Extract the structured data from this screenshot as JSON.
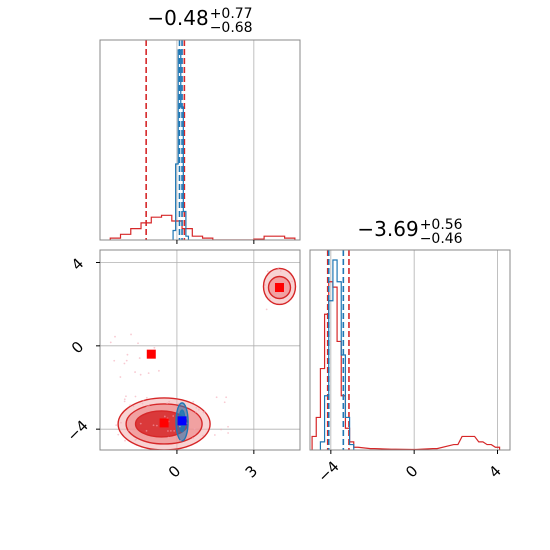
{
  "chart_data": {
    "type": "corner",
    "parameters": [
      {
        "title_value": "−0.48",
        "title_plus": "+0.77",
        "title_minus": "−0.68"
      },
      {
        "title_value": "−3.69",
        "title_plus": "+0.56",
        "title_minus": "−0.46"
      }
    ],
    "ranges": {
      "p0": [
        -3.0,
        4.8
      ],
      "p1": [
        -5.0,
        4.6
      ]
    },
    "ticks": {
      "p0": [
        {
          "v": 0,
          "label": "0"
        },
        {
          "v": 3,
          "label": "3"
        }
      ],
      "p1": [
        {
          "v": -4,
          "label": "−4"
        },
        {
          "v": 0,
          "label": "0"
        },
        {
          "v": 4,
          "label": "4"
        }
      ]
    },
    "series": [
      {
        "color": "#d62728",
        "hist_p0": {
          "x": [
            -2.4,
            -2.0,
            -1.6,
            -1.2,
            -0.8,
            -0.4,
            0.0,
            0.4,
            0.8,
            1.2,
            1.6,
            2.0,
            2.4,
            2.8,
            3.2,
            3.6,
            4.0,
            4.4
          ],
          "y": [
            0.01,
            0.03,
            0.06,
            0.09,
            0.12,
            0.13,
            0.1,
            0.06,
            0.02,
            0.01,
            0,
            0,
            0,
            0,
            0.005,
            0.02,
            0.02,
            0.01
          ]
        },
        "hist_p1": {
          "x": [
            -4.8,
            -4.6,
            -4.4,
            -4.2,
            -4.0,
            -3.8,
            -3.6,
            -3.4,
            -3.2,
            -3.0,
            -2.8,
            -2.0,
            -1.0,
            0.0,
            1.0,
            2.0,
            2.4,
            2.8,
            3.2,
            3.6,
            4.0
          ],
          "y": [
            0.05,
            0.12,
            0.3,
            0.5,
            0.62,
            0.6,
            0.4,
            0.2,
            0.08,
            0.03,
            0.01,
            0.005,
            0.003,
            0.002,
            0.005,
            0.02,
            0.05,
            0.05,
            0.03,
            0.02,
            0.01
          ]
        },
        "quantiles_p0": [
          -1.2,
          0.29
        ],
        "quantiles_p1": [
          -4.15,
          -3.13
        ],
        "truth_points": [
          {
            "x": 4.0,
            "y": 2.8
          },
          {
            "x": -1.0,
            "y": -0.4
          },
          {
            "x": -0.5,
            "y": -3.7
          }
        ]
      },
      {
        "color": "#1f77b4",
        "hist_p0": {
          "x": [
            -0.1,
            0.0,
            0.1,
            0.2,
            0.3,
            0.4
          ],
          "y": [
            0.05,
            0.4,
            1.0,
            0.7,
            0.15,
            0.02
          ]
        },
        "hist_p1": {
          "x": [
            -4.4,
            -4.2,
            -4.0,
            -3.8,
            -3.6,
            -3.4,
            -3.2,
            -3.0
          ],
          "y": [
            0.03,
            0.2,
            0.55,
            0.7,
            0.62,
            0.35,
            0.12,
            0.02
          ]
        },
        "quantiles_p0": [
          0.1,
          0.2
        ],
        "quantiles_p1": [
          -4.1,
          -3.4
        ],
        "truth_points": [
          {
            "x": 0.2,
            "y": -3.6
          }
        ]
      }
    ],
    "legend": "none",
    "grid": true
  }
}
